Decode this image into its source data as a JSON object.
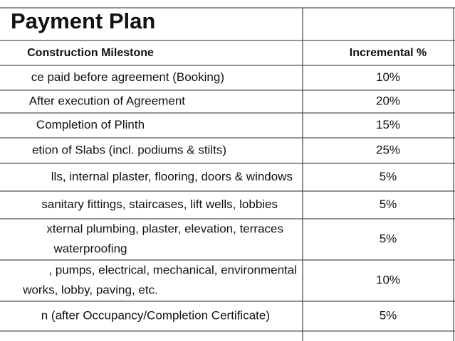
{
  "header": {
    "title": "Payment Plan"
  },
  "table": {
    "columns": [
      "Construction Milestone",
      "Incremental %"
    ],
    "rows": [
      {
        "milestone": [
          "ce paid before agreement (Booking)"
        ],
        "percent": "10%"
      },
      {
        "milestone": [
          "After execution of Agreement"
        ],
        "percent": "20%"
      },
      {
        "milestone": [
          "Completion of Plinth"
        ],
        "percent": "15%"
      },
      {
        "milestone": [
          "etion of Slabs (incl. podiums & stilts)"
        ],
        "percent": "25%"
      },
      {
        "milestone": [
          "lls, internal plaster, flooring, doors & windows"
        ],
        "percent": "5%"
      },
      {
        "milestone": [
          "sanitary fittings, staircases, lift wells, lobbies"
        ],
        "percent": "5%"
      },
      {
        "milestone": [
          "xternal plumbing, plaster, elevation, terraces",
          "waterproofing"
        ],
        "percent": "5%"
      },
      {
        "milestone": [
          ", pumps, electrical, mechanical, environmental",
          "works, lobby, paving, etc."
        ],
        "percent": "10%"
      },
      {
        "milestone": [
          "n (after Occupancy/Completion Certificate)"
        ],
        "percent": "5%"
      }
    ]
  }
}
